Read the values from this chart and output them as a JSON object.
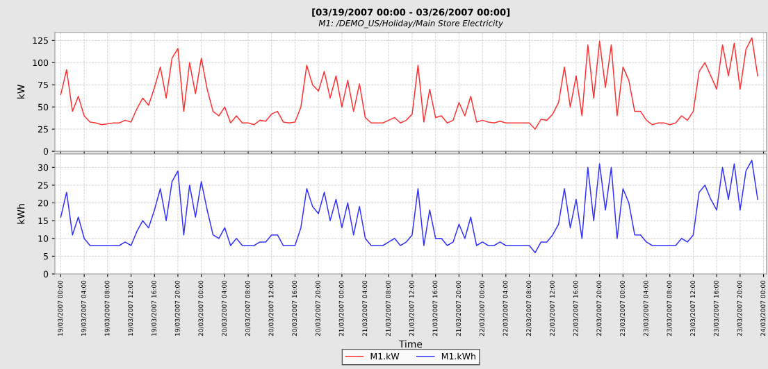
{
  "chart_data": [
    {
      "type": "line",
      "title": "[03/19/2007 00:00 - 03/26/2007 00:00]",
      "subtitle": "M1: /DEMO_US/Holiday/Main Store Electricity",
      "ylabel": "kW",
      "x": [
        "2007-03-19T00:00",
        "2007-03-19T01:00",
        "2007-03-19T02:00",
        "2007-03-19T03:00",
        "2007-03-19T04:00",
        "2007-03-19T05:00",
        "2007-03-19T06:00",
        "2007-03-19T07:00",
        "2007-03-19T08:00",
        "2007-03-19T09:00",
        "2007-03-19T10:00",
        "2007-03-19T11:00",
        "2007-03-19T12:00",
        "2007-03-19T13:00",
        "2007-03-19T14:00",
        "2007-03-19T15:00",
        "2007-03-19T16:00",
        "2007-03-19T17:00",
        "2007-03-19T18:00",
        "2007-03-19T19:00",
        "2007-03-19T20:00",
        "2007-03-19T21:00",
        "2007-03-19T22:00",
        "2007-03-19T23:00",
        "2007-03-20T00:00",
        "2007-03-20T01:00",
        "2007-03-20T02:00",
        "2007-03-20T03:00",
        "2007-03-20T04:00",
        "2007-03-20T05:00",
        "2007-03-20T06:00",
        "2007-03-20T07:00",
        "2007-03-20T08:00",
        "2007-03-20T09:00",
        "2007-03-20T10:00",
        "2007-03-20T11:00",
        "2007-03-20T12:00",
        "2007-03-20T13:00",
        "2007-03-20T14:00",
        "2007-03-20T15:00",
        "2007-03-20T16:00",
        "2007-03-20T17:00",
        "2007-03-20T18:00",
        "2007-03-20T19:00",
        "2007-03-20T20:00",
        "2007-03-20T21:00",
        "2007-03-20T22:00",
        "2007-03-20T23:00",
        "2007-03-21T00:00",
        "2007-03-21T01:00",
        "2007-03-21T02:00",
        "2007-03-21T03:00",
        "2007-03-21T04:00",
        "2007-03-21T05:00",
        "2007-03-21T06:00",
        "2007-03-21T07:00",
        "2007-03-21T08:00",
        "2007-03-21T09:00",
        "2007-03-21T10:00",
        "2007-03-21T11:00",
        "2007-03-21T12:00",
        "2007-03-21T13:00",
        "2007-03-21T14:00",
        "2007-03-21T15:00",
        "2007-03-21T16:00",
        "2007-03-21T17:00",
        "2007-03-21T18:00",
        "2007-03-21T19:00",
        "2007-03-21T20:00",
        "2007-03-21T21:00",
        "2007-03-21T22:00",
        "2007-03-21T23:00",
        "2007-03-22T00:00",
        "2007-03-22T01:00",
        "2007-03-22T02:00",
        "2007-03-22T03:00",
        "2007-03-22T04:00",
        "2007-03-22T05:00",
        "2007-03-22T06:00",
        "2007-03-22T07:00",
        "2007-03-22T08:00",
        "2007-03-22T09:00",
        "2007-03-22T10:00",
        "2007-03-22T11:00",
        "2007-03-22T12:00",
        "2007-03-22T13:00",
        "2007-03-22T14:00",
        "2007-03-22T15:00",
        "2007-03-22T16:00",
        "2007-03-22T17:00",
        "2007-03-22T18:00",
        "2007-03-22T19:00",
        "2007-03-22T20:00",
        "2007-03-22T21:00",
        "2007-03-22T22:00",
        "2007-03-22T23:00",
        "2007-03-23T00:00",
        "2007-03-23T01:00",
        "2007-03-23T02:00",
        "2007-03-23T03:00",
        "2007-03-23T04:00",
        "2007-03-23T05:00",
        "2007-03-23T06:00",
        "2007-03-23T07:00",
        "2007-03-23T08:00",
        "2007-03-23T09:00",
        "2007-03-23T10:00",
        "2007-03-23T11:00",
        "2007-03-23T12:00",
        "2007-03-23T13:00",
        "2007-03-23T14:00",
        "2007-03-23T15:00",
        "2007-03-23T16:00",
        "2007-03-23T17:00",
        "2007-03-23T18:00",
        "2007-03-23T19:00",
        "2007-03-23T20:00",
        "2007-03-23T21:00",
        "2007-03-23T22:00",
        "2007-03-23T23:00"
      ],
      "series": [
        {
          "name": "M1.kW",
          "color": "#ff3333",
          "values": [
            64,
            92,
            45,
            62,
            40,
            33,
            32,
            30,
            31,
            32,
            32,
            35,
            33,
            48,
            60,
            52,
            72,
            95,
            60,
            105,
            116,
            45,
            100,
            65,
            105,
            70,
            45,
            40,
            50,
            32,
            40,
            32,
            32,
            30,
            35,
            34,
            42,
            45,
            33,
            32,
            33,
            50,
            97,
            75,
            68,
            90,
            60,
            85,
            50,
            80,
            45,
            76,
            38,
            32,
            32,
            32,
            35,
            38,
            32,
            35,
            42,
            97,
            33,
            70,
            38,
            40,
            32,
            35,
            55,
            40,
            62,
            33,
            35,
            33,
            32,
            34,
            32,
            32,
            32,
            32,
            32,
            25,
            36,
            35,
            42,
            55,
            95,
            50,
            85,
            40,
            120,
            60,
            124,
            72,
            120,
            40,
            95,
            80,
            45,
            45,
            35,
            30,
            32,
            32,
            30,
            32,
            40,
            35,
            45,
            90,
            100,
            85,
            70,
            120,
            85,
            122,
            70,
            115,
            128,
            85
          ]
        }
      ],
      "xlim": [
        "2007-03-18T23:00",
        "2007-03-24T00:30"
      ],
      "xticks": [
        {
          "value": "2007-03-19T00:00",
          "label": "19/03/2007 00:00"
        },
        {
          "value": "2007-03-19T04:00",
          "label": "19/03/2007 04:00"
        },
        {
          "value": "2007-03-19T08:00",
          "label": "19/03/2007 08:00"
        },
        {
          "value": "2007-03-19T12:00",
          "label": "19/03/2007 12:00"
        },
        {
          "value": "2007-03-19T16:00",
          "label": "19/03/2007 16:00"
        },
        {
          "value": "2007-03-19T20:00",
          "label": "19/03/2007 20:00"
        },
        {
          "value": "2007-03-20T00:00",
          "label": "20/03/2007 00:00"
        },
        {
          "value": "2007-03-20T04:00",
          "label": "20/03/2007 04:00"
        },
        {
          "value": "2007-03-20T08:00",
          "label": "20/03/2007 08:00"
        },
        {
          "value": "2007-03-20T12:00",
          "label": "20/03/2007 12:00"
        },
        {
          "value": "2007-03-20T16:00",
          "label": "20/03/2007 16:00"
        },
        {
          "value": "2007-03-20T20:00",
          "label": "20/03/2007 20:00"
        },
        {
          "value": "2007-03-21T00:00",
          "label": "21/03/2007 00:00"
        },
        {
          "value": "2007-03-21T04:00",
          "label": "21/03/2007 04:00"
        },
        {
          "value": "2007-03-21T08:00",
          "label": "21/03/2007 08:00"
        },
        {
          "value": "2007-03-21T12:00",
          "label": "21/03/2007 12:00"
        },
        {
          "value": "2007-03-21T16:00",
          "label": "21/03/2007 16:00"
        },
        {
          "value": "2007-03-21T20:00",
          "label": "21/03/2007 20:00"
        },
        {
          "value": "2007-03-22T00:00",
          "label": "22/03/2007 00:00"
        },
        {
          "value": "2007-03-22T04:00",
          "label": "22/03/2007 04:00"
        },
        {
          "value": "2007-03-22T08:00",
          "label": "22/03/2007 08:00"
        },
        {
          "value": "2007-03-22T12:00",
          "label": "22/03/2007 12:00"
        },
        {
          "value": "2007-03-22T16:00",
          "label": "22/03/2007 16:00"
        },
        {
          "value": "2007-03-22T20:00",
          "label": "22/03/2007 20:00"
        },
        {
          "value": "2007-03-23T00:00",
          "label": "23/03/2007 00:00"
        },
        {
          "value": "2007-03-23T04:00",
          "label": "23/03/2007 04:00"
        },
        {
          "value": "2007-03-23T08:00",
          "label": "23/03/2007 08:00"
        },
        {
          "value": "2007-03-23T12:00",
          "label": "23/03/2007 12:00"
        },
        {
          "value": "2007-03-23T16:00",
          "label": "23/03/2007 16:00"
        },
        {
          "value": "2007-03-23T20:00",
          "label": "23/03/2007 20:00"
        },
        {
          "value": "2007-03-24T00:00",
          "label": "24/03/2007 00:00"
        }
      ],
      "ylim": [
        0,
        134
      ],
      "yticks": [
        0,
        25,
        50,
        75,
        100,
        125
      ],
      "grid": true,
      "legend": "bottom",
      "tick_labels": "y",
      "line_style": "solid",
      "marker": "none"
    },
    {
      "type": "line",
      "xlabel": "Time",
      "ylabel": "kWh",
      "series": [
        {
          "name": "M1.kWh",
          "color": "#3333ff",
          "values": [
            16,
            23,
            11,
            16,
            10,
            8,
            8,
            8,
            8,
            8,
            8,
            9,
            8,
            12,
            15,
            13,
            18,
            24,
            15,
            26,
            29,
            11,
            25,
            16,
            26,
            18,
            11,
            10,
            13,
            8,
            10,
            8,
            8,
            8,
            9,
            9,
            11,
            11,
            8,
            8,
            8,
            13,
            24,
            19,
            17,
            23,
            15,
            21,
            13,
            20,
            11,
            19,
            10,
            8,
            8,
            8,
            9,
            10,
            8,
            9,
            11,
            24,
            8,
            18,
            10,
            10,
            8,
            9,
            14,
            10,
            16,
            8,
            9,
            8,
            8,
            9,
            8,
            8,
            8,
            8,
            8,
            6,
            9,
            9,
            11,
            14,
            24,
            13,
            21,
            10,
            30,
            15,
            31,
            18,
            30,
            10,
            24,
            20,
            11,
            11,
            9,
            8,
            8,
            8,
            8,
            8,
            10,
            9,
            11,
            23,
            25,
            21,
            18,
            30,
            21,
            31,
            18,
            29,
            32,
            21
          ]
        }
      ],
      "ylim": [
        0,
        33.8
      ],
      "yticks": [
        0,
        5,
        10,
        15,
        20,
        25,
        30
      ],
      "grid": true,
      "legend": "bottom",
      "line_style": "solid",
      "marker": "none"
    }
  ]
}
